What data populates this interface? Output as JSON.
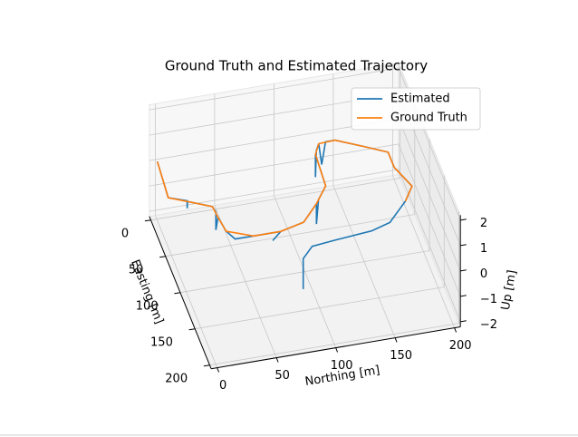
{
  "chart_data": {
    "type": "line3d",
    "title": "Ground Truth and Estimated Trajectory",
    "x_label": "Northing [m]",
    "y_label": "Easting [m]",
    "z_label": "Up [m]",
    "xlim": [
      -5,
      205
    ],
    "ylim": [
      -5,
      205
    ],
    "zlim": [
      -2.2,
      2.2
    ],
    "xticks": [
      0,
      50,
      100,
      150,
      200
    ],
    "yticks": [
      0,
      50,
      100,
      150,
      200
    ],
    "zticks": [
      {
        "value": -2,
        "label": "−2"
      },
      {
        "value": -1,
        "label": "−1"
      },
      0,
      1,
      2
    ],
    "grid": true,
    "legend": "upper right",
    "series": [
      {
        "name": "Estimated",
        "color": "#1f77b4",
        "x": [
          1,
          -2,
          12,
          12,
          12,
          30,
          31,
          31,
          31,
          33,
          40,
          53,
          76,
          70,
          76,
          97,
          113,
          113,
          116,
          126,
          128,
          128,
          130,
          134,
          137,
          140,
          148,
          171,
          186,
          186,
          194,
          184,
          176,
          165,
          148,
          116,
          96,
          85,
          85
        ],
        "y": [
          -2,
          47,
          55,
          55,
          56,
          68,
          76,
          76,
          83,
          103,
          105,
          115,
          115,
          112,
          115,
          108,
          87,
          87,
          82,
          66,
          23,
          23,
          18,
          10,
          8,
          9,
          9,
          25,
          36,
          57,
          85,
          103,
          113,
          127,
          134,
          138,
          141,
          155,
          155
        ],
        "z": [
          0,
          0,
          0,
          -0.3,
          0,
          0,
          0,
          -0.7,
          0,
          0,
          -0.3,
          0,
          0,
          -0.4,
          0,
          0,
          0,
          -0.8,
          0,
          0,
          0,
          -0.9,
          0,
          0,
          -0.9,
          0,
          0,
          0,
          0,
          0,
          0,
          0,
          0,
          0,
          0,
          0,
          0,
          0,
          -1.2
        ]
      },
      {
        "name": "Ground Truth",
        "color": "#ff7f0e",
        "x": [
          1,
          -2,
          30,
          31,
          33,
          53,
          76,
          97,
          113,
          126,
          128,
          134,
          148,
          171,
          186,
          186,
          194,
          184
        ],
        "y": [
          -2,
          47,
          68,
          83,
          103,
          115,
          115,
          108,
          87,
          66,
          23,
          10,
          9,
          25,
          36,
          57,
          85,
          103
        ],
        "z": [
          0,
          0,
          0,
          0,
          0,
          0,
          0,
          0,
          0,
          0,
          0,
          0,
          0,
          0,
          0,
          0,
          0,
          0
        ]
      }
    ]
  }
}
